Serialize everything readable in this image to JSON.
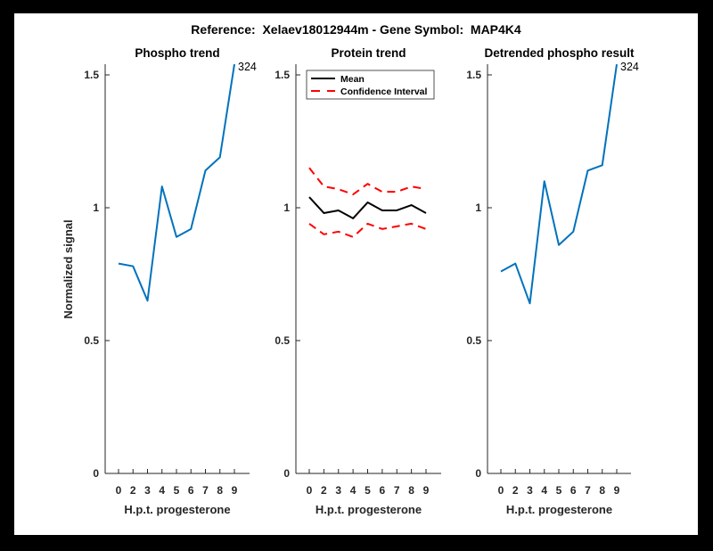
{
  "window": {
    "canvas_bg": "#000000",
    "figure_bg": "#FFFFFF"
  },
  "header": {
    "title": "Reference:  Xelaev18012944m - Gene Symbol:  MAP4K4"
  },
  "axes": {
    "ylabel": "Normalized signal",
    "xlabel": "H.p.t. progesterone",
    "xticklabels": [
      "0",
      "2",
      "3",
      "4",
      "5",
      "6",
      "7",
      "8",
      "9"
    ],
    "yticks": [
      0,
      0.5,
      1,
      1.5
    ],
    "yticklabels": [
      "0",
      "0.5",
      "1",
      "1.5"
    ],
    "ylim": [
      0,
      1.54
    ],
    "grid": false,
    "axis_color": "#262626"
  },
  "chart_data": [
    {
      "type": "line",
      "title": "Phospho trend",
      "xlabel": "H.p.t. progesterone",
      "ylabel": "Normalized signal",
      "x": [
        0,
        2,
        3,
        4,
        5,
        6,
        7,
        8,
        9
      ],
      "series": [
        {
          "name": "phospho signal",
          "color": "#0072BD",
          "dash": false,
          "values": [
            0.79,
            0.78,
            0.65,
            1.08,
            0.89,
            0.92,
            1.14,
            1.19,
            1.54
          ]
        }
      ],
      "end_label": "324",
      "ylim": [
        0,
        1.54
      ]
    },
    {
      "type": "line",
      "title": "Protein trend",
      "xlabel": "H.p.t. progesterone",
      "x": [
        0,
        2,
        3,
        4,
        5,
        6,
        7,
        8,
        9
      ],
      "series": [
        {
          "name": "Mean",
          "color": "#000000",
          "dash": false,
          "values": [
            1.04,
            0.98,
            0.99,
            0.96,
            1.02,
            0.99,
            0.99,
            1.01,
            0.98
          ]
        },
        {
          "name": "Confidence Interval upper",
          "color": "#FF0000",
          "dash": true,
          "values": [
            1.15,
            1.08,
            1.07,
            1.05,
            1.09,
            1.06,
            1.06,
            1.08,
            1.07
          ]
        },
        {
          "name": "Confidence Interval lower",
          "color": "#FF0000",
          "dash": true,
          "values": [
            0.94,
            0.9,
            0.91,
            0.89,
            0.94,
            0.92,
            0.93,
            0.94,
            0.92
          ]
        }
      ],
      "legend": [
        {
          "label": "Mean",
          "color": "#000000",
          "dash": false
        },
        {
          "label": "Confidence Interval",
          "color": "#FF0000",
          "dash": true
        }
      ],
      "legend_position": "northwest",
      "ylim": [
        0,
        1.54
      ]
    },
    {
      "type": "line",
      "title": "Detrended phospho result",
      "xlabel": "H.p.t. progesterone",
      "x": [
        0,
        2,
        3,
        4,
        5,
        6,
        7,
        8,
        9
      ],
      "series": [
        {
          "name": "detrended phospho signal",
          "color": "#0072BD",
          "dash": false,
          "values": [
            0.76,
            0.79,
            0.64,
            1.1,
            0.86,
            0.91,
            1.14,
            1.16,
            1.54
          ]
        }
      ],
      "end_label": "324",
      "ylim": [
        0,
        1.54
      ]
    }
  ]
}
